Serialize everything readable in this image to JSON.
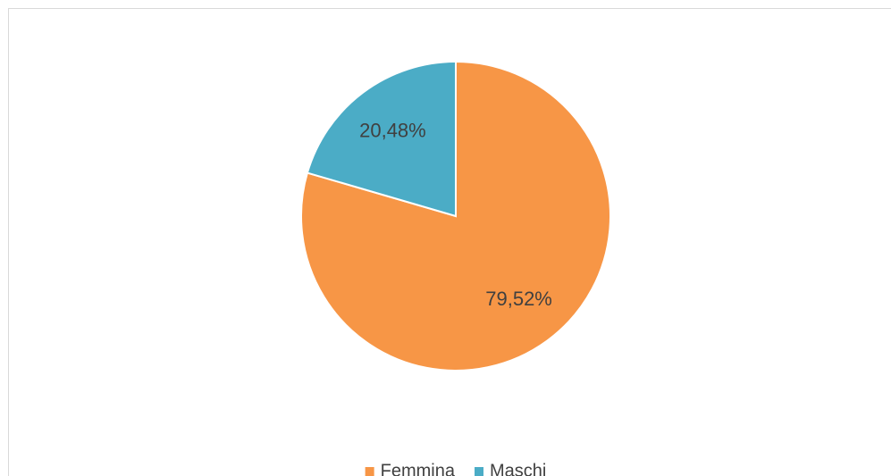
{
  "chart_data": {
    "type": "pie",
    "categories": [
      "Femmina",
      "Maschi"
    ],
    "values": [
      79.52,
      20.48
    ],
    "value_labels": [
      "79,52%",
      "20,48%"
    ],
    "colors": [
      "#F79646",
      "#4BACC6"
    ],
    "legend": "bottom"
  }
}
